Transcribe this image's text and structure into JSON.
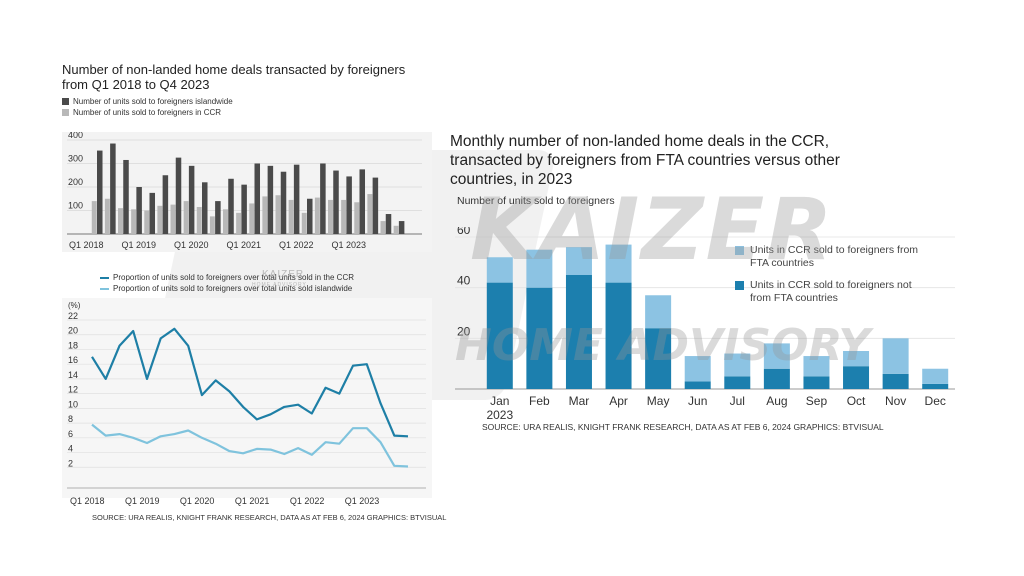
{
  "left": {
    "title": "Number of non-landed home deals transacted by foreigners from Q1 2018 to Q4 2023",
    "legend_bar": [
      "Number of units sold to foreigners islandwide",
      "Number of units sold to foreigners in CCR"
    ],
    "legend_line": [
      "Proportion of units sold to foreigners over total units sold in the CCR",
      "Proportion of units sold to foreigners over total units sold islandwide"
    ],
    "source": "SOURCE: URA REALIS, KNIGHT FRANK RESEARCH, DATA AS AT FEB 6, 2024   GRAPHICS: BTVISUAL",
    "watermark": "KAIZER",
    "watermark_sub": "HOME ADVISORY"
  },
  "right": {
    "title": "Monthly number of non-landed home deals in the CCR, transacted by foreigners from FTA countries versus other countries, in 2023",
    "subtitle": "Number of units sold to foreigners",
    "source": "SOURCE: URA REALIS, KNIGHT FRANK RESEARCH, DATA AS AT FEB 6, 2024   GRAPHICS: BTVISUAL",
    "legend": [
      "Units in CCR sold to foreigners from FTA countries",
      "Units in CCR sold to foreigners not from FTA countries"
    ]
  },
  "watermark_big": "KAIZER",
  "watermark_big_sub": "HOME ADVISORY",
  "colors": {
    "dark_bar": "#4a4a4a",
    "light_bar": "#b8b8b8",
    "ccr_line": "#1e7fa6",
    "island_line": "#7fc3dd",
    "fta": "#8cc3e3",
    "nonfta": "#1c7fae"
  },
  "chart_data": [
    {
      "type": "bar",
      "title": "Number of non-landed home deals transacted by foreigners from Q1 2018 to Q4 2023",
      "x_tick_labels": [
        "Q1 2018",
        "Q1 2019",
        "Q1 2020",
        "Q1 2021",
        "Q1 2022",
        "Q1 2023"
      ],
      "ylim": [
        0,
        400
      ],
      "y_ticks": [
        100,
        200,
        300,
        400
      ],
      "series": [
        {
          "name": "Number of units sold to foreigners islandwide",
          "values": [
            355,
            385,
            315,
            200,
            175,
            250,
            325,
            290,
            220,
            140,
            235,
            210,
            300,
            290,
            265,
            295,
            150,
            300,
            270,
            245,
            275,
            240,
            85,
            55
          ]
        },
        {
          "name": "Number of units sold to foreigners in CCR",
          "values": [
            140,
            150,
            110,
            105,
            100,
            120,
            125,
            140,
            115,
            75,
            105,
            90,
            130,
            160,
            165,
            145,
            90,
            155,
            145,
            145,
            135,
            170,
            55,
            35
          ]
        }
      ]
    },
    {
      "type": "line",
      "x_tick_labels": [
        "Q1 2018",
        "Q1 2019",
        "Q1 2020",
        "Q1 2021",
        "Q1 2022",
        "Q1 2023"
      ],
      "ylabel": "(%)",
      "ylim": [
        0,
        22
      ],
      "y_ticks": [
        2,
        4,
        6,
        8,
        10,
        12,
        14,
        16,
        18,
        20,
        22
      ],
      "series": [
        {
          "name": "Proportion of units sold to foreigners over total units sold in the CCR",
          "values": [
            17,
            14,
            18.5,
            20.5,
            14,
            19.5,
            20.8,
            18.5,
            11.8,
            13.8,
            12.3,
            10.2,
            8.5,
            9.2,
            10.2,
            10.5,
            9.3,
            12.8,
            12,
            15.8,
            16,
            10.7,
            6.3,
            6.2
          ]
        },
        {
          "name": "Proportion of units sold to foreigners over total units sold islandwide",
          "values": [
            7.8,
            6.3,
            6.5,
            6,
            5.3,
            6.2,
            6.5,
            7,
            6,
            5.2,
            4.2,
            3.9,
            4.5,
            4.4,
            3.8,
            4.6,
            3.7,
            5.4,
            5.2,
            7.3,
            7.3,
            5.4,
            2.2,
            2.1
          ]
        }
      ]
    },
    {
      "type": "bar",
      "title": "Monthly number of non-landed home deals in the CCR, transacted by foreigners from FTA countries versus other countries, in 2023",
      "ylabel": "Number of units sold to foreigners",
      "categories": [
        "Jan\n2023",
        "Feb",
        "Mar",
        "Apr",
        "May",
        "Jun",
        "Jul",
        "Aug",
        "Sep",
        "Oct",
        "Nov",
        "Dec"
      ],
      "ylim": [
        0,
        60
      ],
      "y_ticks": [
        20,
        40,
        60
      ],
      "series": [
        {
          "name": "Units in CCR sold to foreigners from FTA countries",
          "values": [
            10,
            15,
            11,
            15,
            13,
            10,
            9,
            10,
            8,
            6,
            14,
            6
          ]
        },
        {
          "name": "Units in CCR sold to foreigners not from FTA countries",
          "values": [
            42,
            40,
            45,
            42,
            24,
            3,
            5,
            8,
            5,
            9,
            6,
            2
          ]
        }
      ]
    }
  ]
}
